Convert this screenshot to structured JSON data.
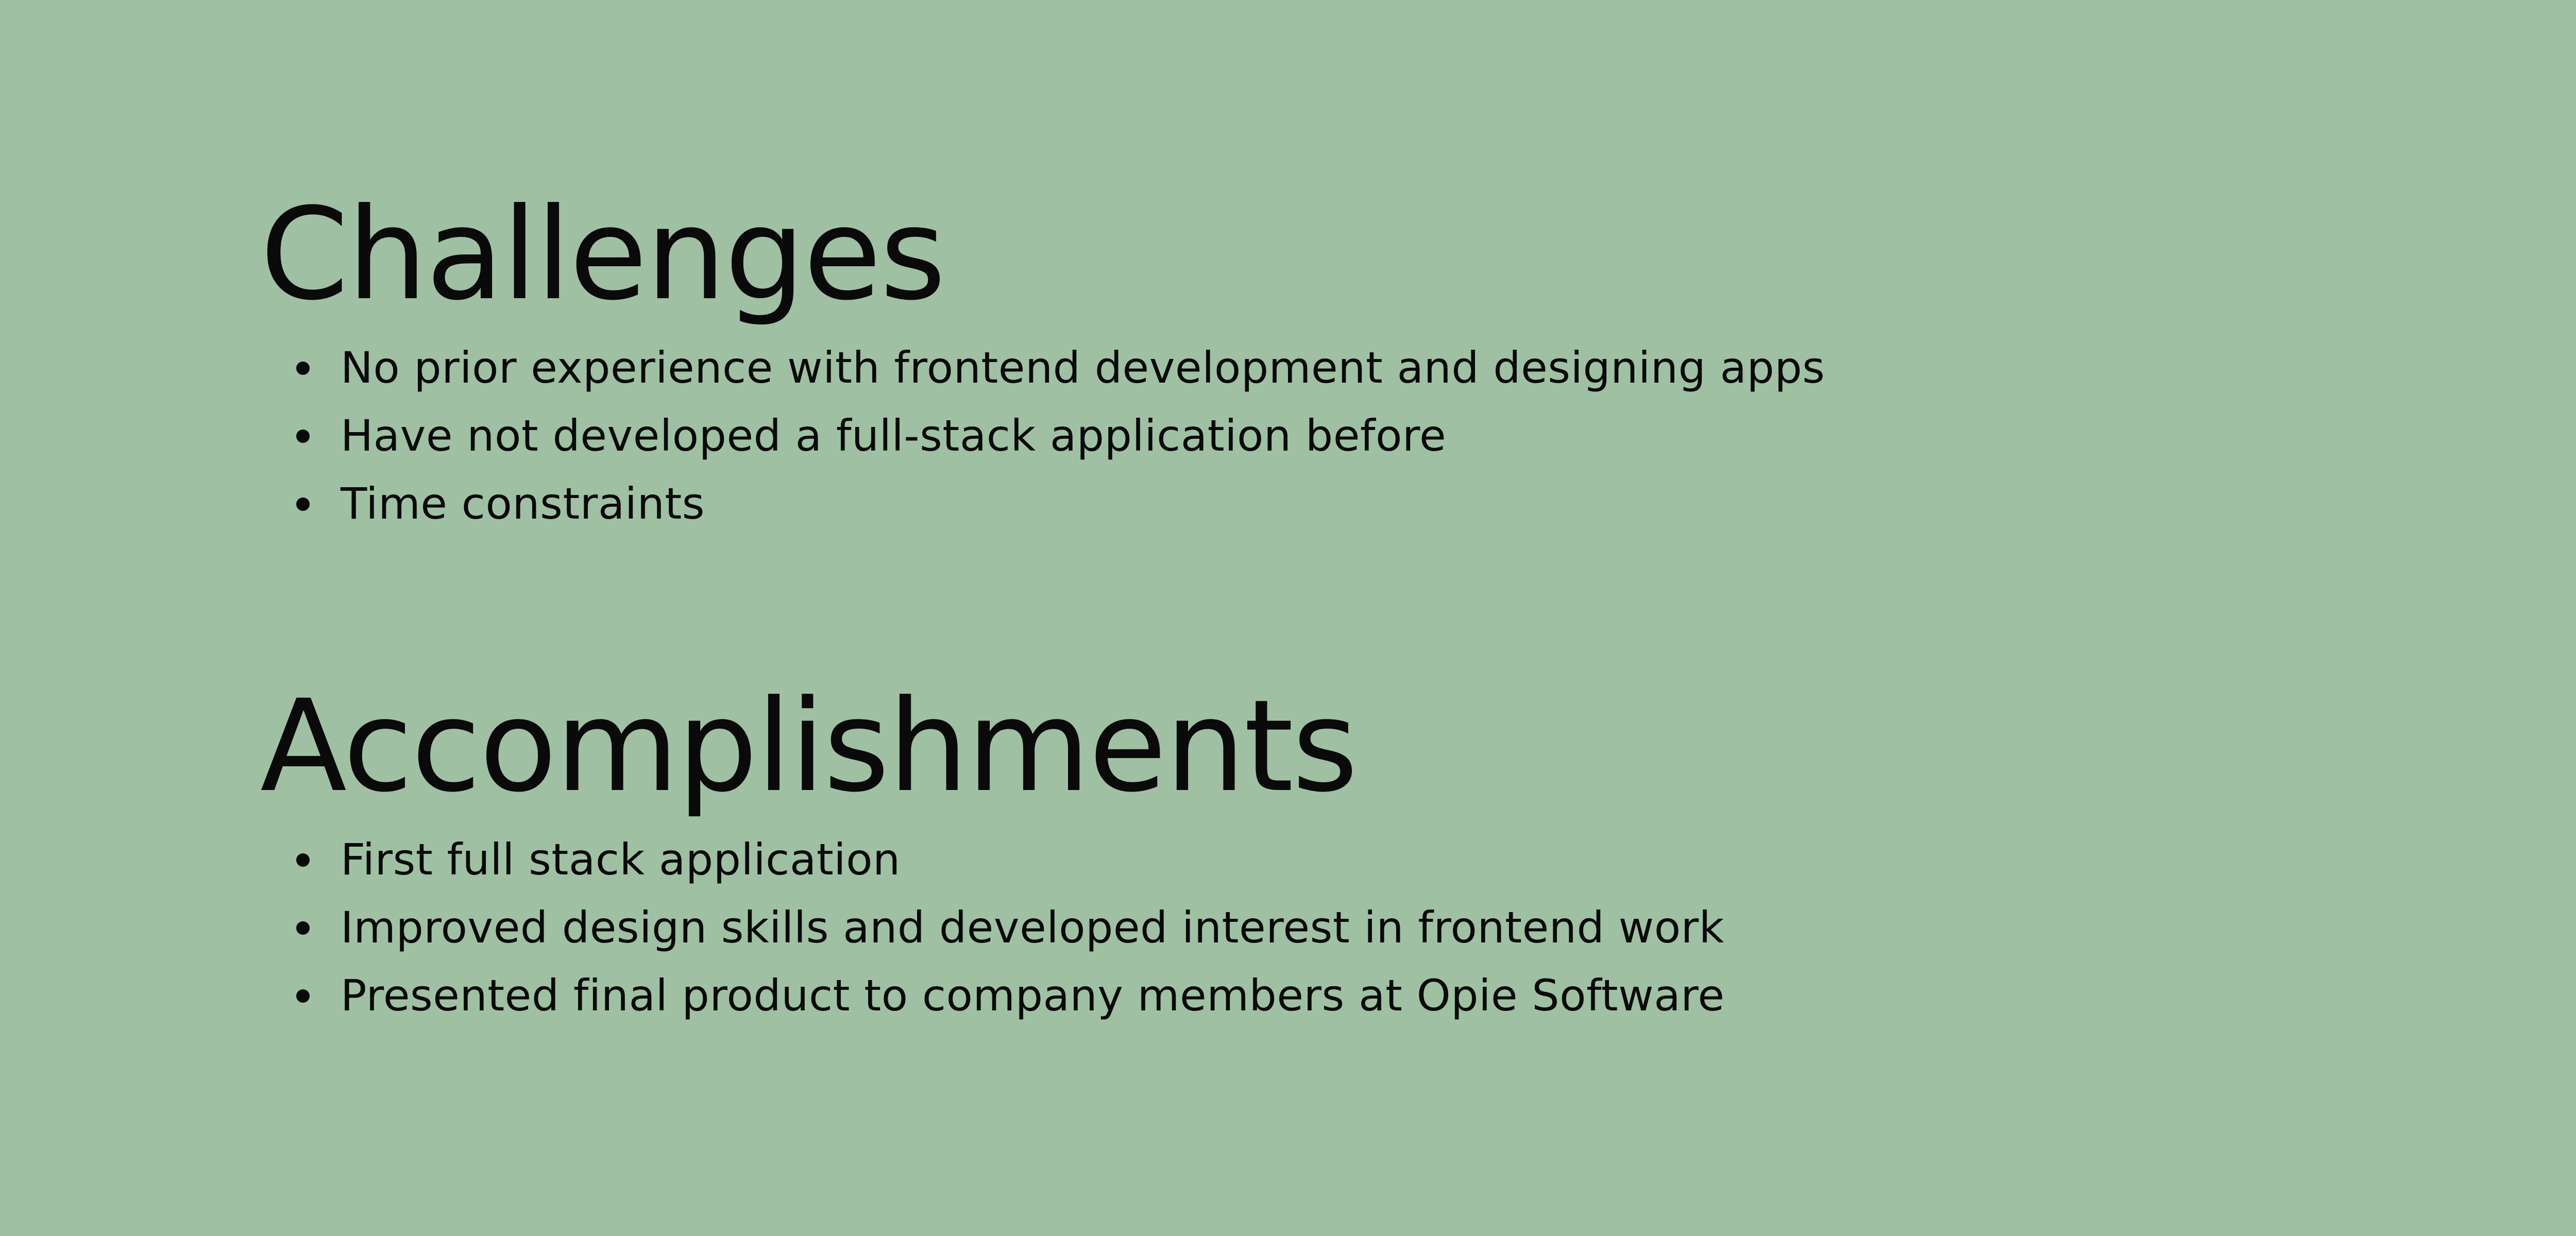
{
  "background_color": "#a0c0a4",
  "text_color": "#0a0a0a",
  "challenges": {
    "title": "Challenges",
    "items": [
      "No prior experience with frontend development and designing apps",
      "Have not developed a full-stack application before",
      "Time constraints"
    ]
  },
  "accomplishments": {
    "title": "Accomplishments",
    "items": [
      "First full stack application",
      "Improved design skills and developed interest in frontend work",
      "Presented final product to company members at Opie Software"
    ]
  }
}
